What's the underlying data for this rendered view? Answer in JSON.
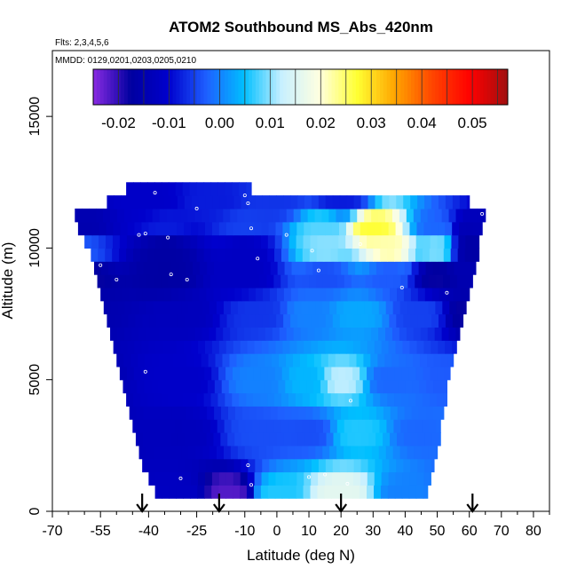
{
  "chart_data": {
    "type": "heatmap",
    "title": "ATOM2 Southbound MS_Abs_420nm",
    "flights_label": "Flts: 2,3,4,5,6",
    "dates_label": "MMDD: 0129,0201,0203,0205,0210",
    "xlabel": "Latitude (deg N)",
    "ylabel": "Altitude (m)",
    "xlim": [
      -70,
      85
    ],
    "ylim": [
      0,
      17500
    ],
    "x_tick_labels": [
      "-70",
      "-55",
      "-40",
      "-25",
      "-10",
      "0",
      "10",
      "20",
      "30",
      "40",
      "50",
      "60",
      "70",
      "80"
    ],
    "x_tick_values": [
      -70,
      -55,
      -40,
      -25,
      -10,
      0,
      10,
      20,
      30,
      40,
      50,
      60,
      70,
      80
    ],
    "x_minor_ticks": [
      -65,
      -60,
      -50,
      -45,
      -35,
      -30,
      -20,
      -15,
      -5,
      5,
      15,
      25,
      35,
      45,
      55,
      65,
      75,
      85
    ],
    "y_tick_labels": [
      "0",
      "5000",
      "10000",
      "15000"
    ],
    "y_tick_values": [
      0,
      5000,
      10000,
      15000
    ],
    "colorbar": {
      "min": -0.025,
      "max": 0.057,
      "tick_labels": [
        "-0.02",
        "-0.01",
        "0.00",
        "0.01",
        "0.02",
        "0.03",
        "0.04",
        "0.05"
      ],
      "tick_values": [
        -0.02,
        -0.01,
        0.0,
        0.01,
        0.02,
        0.03,
        0.04,
        0.05
      ],
      "colors": [
        "#8a2be2",
        "#0000a0",
        "#0000cd",
        "#1e5fff",
        "#00bfff",
        "#c8f0ff",
        "#ffffe0",
        "#ffff33",
        "#ffa500",
        "#ff4500",
        "#ff0000",
        "#a01010"
      ]
    },
    "arrows_lat": [
      -42,
      -18,
      20,
      61
    ],
    "altitude_levels": [
      750,
      1250,
      1750,
      2250,
      2750,
      3250,
      3750,
      4250,
      4750,
      5250,
      5750,
      6250,
      6750,
      7250,
      7750,
      8250,
      8750,
      9250,
      9750,
      10250,
      10750,
      11250,
      11750,
      12250
    ],
    "row_lat_range": [
      [
        -38,
        47
      ],
      [
        -40,
        48
      ],
      [
        -42,
        49
      ],
      [
        -43,
        50
      ],
      [
        -44,
        51
      ],
      [
        -45,
        51
      ],
      [
        -46,
        52
      ],
      [
        -47,
        53
      ],
      [
        -48,
        53
      ],
      [
        -49,
        54
      ],
      [
        -50,
        55
      ],
      [
        -51,
        56
      ],
      [
        -52,
        57
      ],
      [
        -53,
        58
      ],
      [
        -54,
        59
      ],
      [
        -55,
        60
      ],
      [
        -56,
        61
      ],
      [
        -57,
        62
      ],
      [
        -58,
        63
      ],
      [
        -60,
        63
      ],
      [
        -62,
        64
      ],
      [
        -63,
        65
      ],
      [
        -53,
        60
      ],
      [
        -47,
        -8
      ]
    ],
    "anchors": [
      {
        "lat": -60,
        "alt": 750,
        "v": -0.015
      },
      {
        "lat": -30,
        "alt": 750,
        "v": -0.012
      },
      {
        "lat": -15,
        "alt": 750,
        "v": -0.022
      },
      {
        "lat": 0,
        "alt": 750,
        "v": 0.006
      },
      {
        "lat": 20,
        "alt": 750,
        "v": 0.016
      },
      {
        "lat": 40,
        "alt": 750,
        "v": 0.0
      },
      {
        "lat": 60,
        "alt": 750,
        "v": -0.005
      },
      {
        "lat": -60,
        "alt": 3000,
        "v": -0.015
      },
      {
        "lat": -30,
        "alt": 3000,
        "v": -0.013
      },
      {
        "lat": -5,
        "alt": 3000,
        "v": -0.004
      },
      {
        "lat": 10,
        "alt": 3000,
        "v": -0.004
      },
      {
        "lat": 25,
        "alt": 3000,
        "v": 0.006
      },
      {
        "lat": 45,
        "alt": 3000,
        "v": -0.002
      },
      {
        "lat": 60,
        "alt": 3000,
        "v": -0.001
      },
      {
        "lat": -60,
        "alt": 5000,
        "v": -0.015
      },
      {
        "lat": -30,
        "alt": 5000,
        "v": -0.011
      },
      {
        "lat": -5,
        "alt": 5000,
        "v": 0.0
      },
      {
        "lat": 10,
        "alt": 5000,
        "v": 0.004
      },
      {
        "lat": 20,
        "alt": 5000,
        "v": 0.012
      },
      {
        "lat": 35,
        "alt": 5000,
        "v": -0.002
      },
      {
        "lat": 55,
        "alt": 5000,
        "v": -0.003
      },
      {
        "lat": -60,
        "alt": 7500,
        "v": -0.015
      },
      {
        "lat": -30,
        "alt": 7500,
        "v": -0.013
      },
      {
        "lat": -5,
        "alt": 7500,
        "v": -0.006
      },
      {
        "lat": 10,
        "alt": 7500,
        "v": 0.0
      },
      {
        "lat": 25,
        "alt": 7500,
        "v": 0.003
      },
      {
        "lat": 45,
        "alt": 7500,
        "v": -0.005
      },
      {
        "lat": 60,
        "alt": 7500,
        "v": -0.018
      },
      {
        "lat": -60,
        "alt": 9000,
        "v": -0.018
      },
      {
        "lat": -35,
        "alt": 9000,
        "v": -0.017
      },
      {
        "lat": -10,
        "alt": 9000,
        "v": -0.012
      },
      {
        "lat": 15,
        "alt": 9000,
        "v": -0.004
      },
      {
        "lat": 35,
        "alt": 9000,
        "v": -0.003
      },
      {
        "lat": 50,
        "alt": 9000,
        "v": -0.018
      },
      {
        "lat": 60,
        "alt": 9000,
        "v": -0.015
      },
      {
        "lat": -60,
        "alt": 10000,
        "v": -0.003
      },
      {
        "lat": -35,
        "alt": 10000,
        "v": -0.017
      },
      {
        "lat": -10,
        "alt": 10000,
        "v": -0.012
      },
      {
        "lat": 15,
        "alt": 10000,
        "v": 0.01
      },
      {
        "lat": 35,
        "alt": 10000,
        "v": 0.022
      },
      {
        "lat": 50,
        "alt": 10000,
        "v": 0.01
      },
      {
        "lat": 60,
        "alt": 10000,
        "v": -0.017
      },
      {
        "lat": -60,
        "alt": 10800,
        "v": -0.015
      },
      {
        "lat": -35,
        "alt": 10800,
        "v": -0.008
      },
      {
        "lat": -10,
        "alt": 10800,
        "v": -0.005
      },
      {
        "lat": 15,
        "alt": 10800,
        "v": 0.008
      },
      {
        "lat": 30,
        "alt": 10800,
        "v": 0.027
      },
      {
        "lat": 50,
        "alt": 10800,
        "v": -0.002
      },
      {
        "lat": 60,
        "alt": 10800,
        "v": -0.014
      },
      {
        "lat": -40,
        "alt": 11800,
        "v": -0.011
      },
      {
        "lat": -20,
        "alt": 11800,
        "v": -0.008
      },
      {
        "lat": 0,
        "alt": 11800,
        "v": -0.006
      },
      {
        "lat": 20,
        "alt": 11800,
        "v": -0.008
      }
    ],
    "points": [
      [
        -38,
        12100
      ],
      [
        -10,
        12000
      ],
      [
        -9,
        11700
      ],
      [
        -25,
        11500
      ],
      [
        -8,
        10750
      ],
      [
        3,
        10500
      ],
      [
        -43,
        10500
      ],
      [
        -41,
        10550
      ],
      [
        -34,
        10400
      ],
      [
        -67,
        10050
      ],
      [
        -65,
        9700
      ],
      [
        -55,
        9350
      ],
      [
        -6,
        9600
      ],
      [
        11,
        9900
      ],
      [
        26,
        10150
      ],
      [
        -50,
        8800
      ],
      [
        -33,
        9000
      ],
      [
        -28,
        8800
      ],
      [
        13,
        9150
      ],
      [
        39,
        8500
      ],
      [
        53,
        8300
      ],
      [
        -58,
        7250
      ],
      [
        -41,
        5300
      ],
      [
        23,
        4200
      ],
      [
        -9,
        1750
      ],
      [
        -30,
        1250
      ],
      [
        10,
        1300
      ],
      [
        15,
        1400
      ],
      [
        -8,
        1000
      ],
      [
        22,
        1050
      ],
      [
        59,
        2300
      ],
      [
        64,
        11300
      ]
    ]
  }
}
